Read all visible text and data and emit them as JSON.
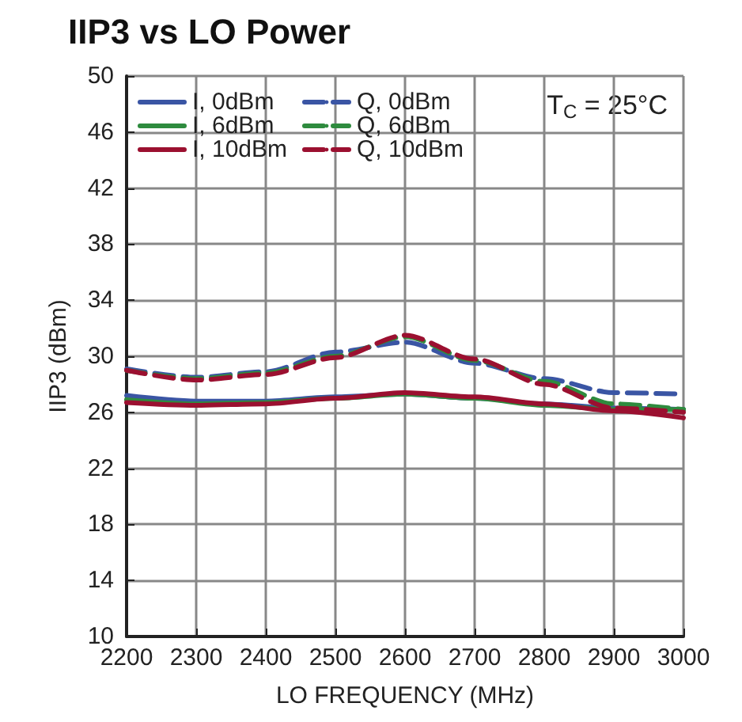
{
  "chart_data": {
    "type": "line",
    "title": "IIP3 vs LO Power",
    "xlabel": "LO FREQUENCY (MHz)",
    "ylabel": "IIP3 (dBm)",
    "annotations": [
      "T$_{C}$ = 25°C"
    ],
    "x": [
      2200,
      2300,
      2400,
      2500,
      2600,
      2700,
      2800,
      2900,
      3000
    ],
    "series": [
      {
        "name": "I, 0dBm",
        "color": "#3a55a4",
        "line_style": "solid",
        "values": [
          27.2,
          26.8,
          26.8,
          27.1,
          27.3,
          27.0,
          26.6,
          26.3,
          26.2
        ]
      },
      {
        "name": "I, 6dBm",
        "color": "#2e8b3e",
        "line_style": "solid",
        "values": [
          26.9,
          26.6,
          26.7,
          27.0,
          27.3,
          27.0,
          26.5,
          26.2,
          26.2
        ]
      },
      {
        "name": "I, 10dBm",
        "color": "#9b1030",
        "line_style": "solid",
        "values": [
          26.7,
          26.5,
          26.6,
          27.0,
          27.4,
          27.1,
          26.6,
          26.1,
          25.6
        ]
      },
      {
        "name": "Q, 0dBm",
        "color": "#3a55a4",
        "line_style": "dashed",
        "values": [
          29.1,
          28.5,
          28.9,
          30.3,
          31.0,
          29.5,
          28.4,
          27.4,
          27.3
        ]
      },
      {
        "name": "Q, 6dBm",
        "color": "#2e8b3e",
        "line_style": "dashed",
        "values": [
          29.0,
          28.4,
          28.8,
          30.0,
          31.4,
          29.7,
          28.2,
          26.6,
          26.2
        ]
      },
      {
        "name": "Q, 10dBm",
        "color": "#9b1030",
        "line_style": "dashed",
        "values": [
          29.0,
          28.3,
          28.7,
          29.9,
          31.5,
          29.8,
          28.0,
          26.3,
          26.0
        ]
      }
    ],
    "xlim": [
      2200,
      3000
    ],
    "xticks": [
      2200,
      2300,
      2400,
      2500,
      2600,
      2700,
      2800,
      2900,
      3000
    ],
    "ylim": [
      10,
      50
    ],
    "yticks": [
      10,
      14,
      18,
      22,
      26,
      30,
      34,
      38,
      42,
      46,
      50
    ],
    "grid": true,
    "legend": "top left",
    "marker": "none"
  }
}
